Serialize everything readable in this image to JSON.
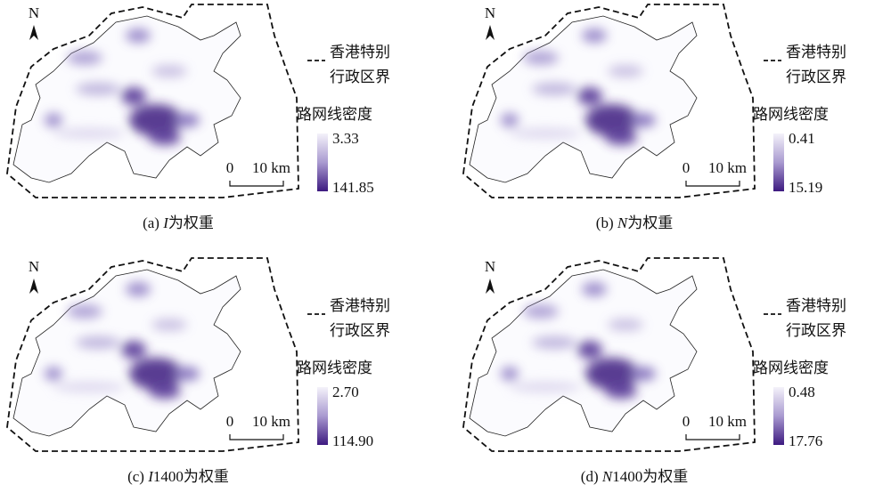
{
  "legend_label": [
    "香港特别",
    "行政区界"
  ],
  "density_title": "路网线密度",
  "north": "N",
  "scale_bar": {
    "zero": "0",
    "distance": "10 km"
  },
  "panels": [
    {
      "min": "3.33",
      "max": "141.85",
      "caption": {
        "prefix": "(a) ",
        "variable": "I",
        "suffix": "为权重"
      }
    },
    {
      "min": "0.41",
      "max": "15.19",
      "caption": {
        "prefix": "(b) ",
        "variable": "N",
        "suffix": "为权重"
      }
    },
    {
      "min": "2.70",
      "max": "114.90",
      "caption": {
        "prefix": "(c) ",
        "variable": "I",
        "suffix": "1400为权重"
      }
    },
    {
      "min": "0.48",
      "max": "17.76",
      "caption": {
        "prefix": "(d) ",
        "variable": "N",
        "suffix": "1400为权重"
      }
    }
  ]
}
